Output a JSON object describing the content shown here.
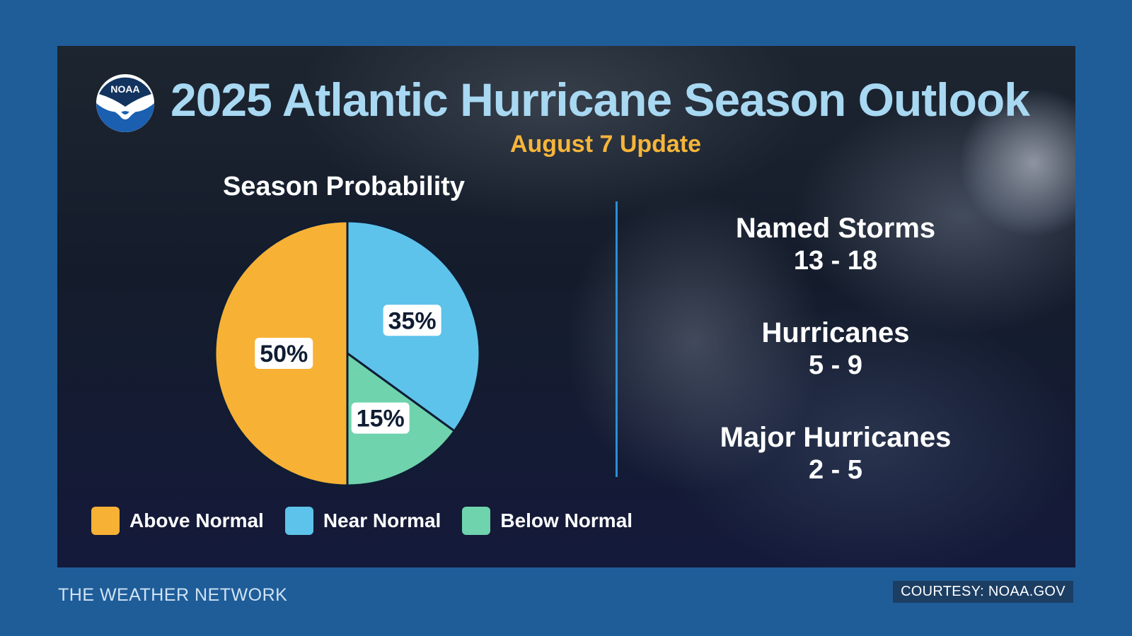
{
  "header": {
    "title": "2025 Atlantic Hurricane Season Outlook",
    "subtitle": "August 7 Update",
    "logo_text": "NOAA"
  },
  "chart_data": {
    "type": "pie",
    "title": "Season Probability",
    "categories": [
      "Above Normal",
      "Near Normal",
      "Below Normal"
    ],
    "values": [
      50,
      35,
      15
    ],
    "value_labels": [
      "50%",
      "35%",
      "15%"
    ],
    "colors": [
      "#f7b135",
      "#5ec3ea",
      "#6fd3ad"
    ],
    "legend_position": "bottom"
  },
  "stats": [
    {
      "label": "Named Storms",
      "value": "13 - 18"
    },
    {
      "label": "Hurricanes",
      "value": "5 - 9"
    },
    {
      "label": "Major Hurricanes",
      "value": "2 - 5"
    }
  ],
  "footer": {
    "source": "THE WEATHER NETWORK",
    "courtesy": "COURTESY: NOAA.GOV"
  },
  "colors": {
    "page_background": "#1f5d99",
    "title": "#a8d8f2",
    "subtitle": "#f6b53a",
    "divider": "#2a8fd6"
  }
}
